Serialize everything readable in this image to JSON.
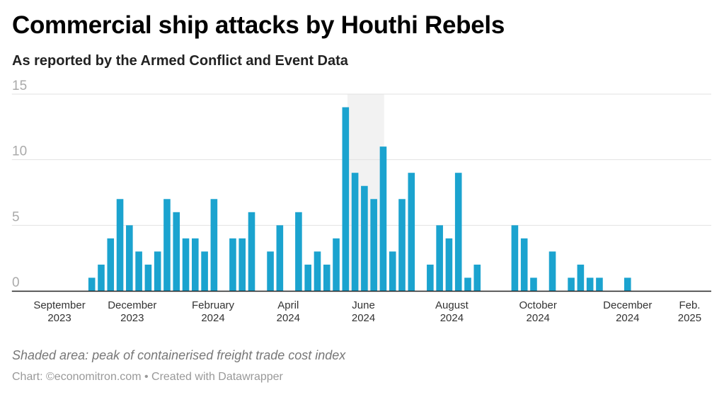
{
  "chart_data": {
    "type": "bar",
    "title": "Commercial ship attacks by Houthi Rebels",
    "subtitle": "As reported by the Armed Conflict and Event Data",
    "xlabel": "",
    "ylabel": "",
    "ylim": [
      0,
      15
    ],
    "yticks": [
      0,
      5,
      10,
      15
    ],
    "grid": true,
    "x_unit": "week index",
    "xlim": [
      0,
      74.4
    ],
    "values": [
      0,
      0,
      0,
      0,
      0,
      0,
      0,
      0,
      1,
      2,
      4,
      7,
      5,
      3,
      2,
      3,
      7,
      6,
      4,
      4,
      3,
      7,
      0,
      4,
      4,
      6,
      0,
      3,
      5,
      0,
      6,
      2,
      3,
      2,
      4,
      14,
      9,
      8,
      7,
      11,
      3,
      7,
      9,
      0,
      2,
      5,
      4,
      9,
      1,
      2,
      0,
      0,
      0,
      5,
      4,
      1,
      0,
      3,
      0,
      1,
      2,
      1,
      1,
      0,
      0,
      1,
      0,
      0,
      0,
      0,
      0,
      0,
      0,
      0
    ],
    "xticks": [
      {
        "pos": 5.06,
        "line1": "September",
        "line2": "2023"
      },
      {
        "pos": 12.8,
        "line1": "December",
        "line2": "2023"
      },
      {
        "pos": 21.4,
        "line1": "February",
        "line2": "2024"
      },
      {
        "pos": 29.4,
        "line1": "April",
        "line2": "2024"
      },
      {
        "pos": 37.4,
        "line1": "June",
        "line2": "2024"
      },
      {
        "pos": 46.8,
        "line1": "August",
        "line2": "2024"
      },
      {
        "pos": 55.97,
        "line1": "October",
        "line2": "2024"
      },
      {
        "pos": 65.5,
        "line1": "December",
        "line2": "2024"
      },
      {
        "pos": 72.1,
        "line1": "Feb.",
        "line2": "2025"
      }
    ],
    "shaded_range": [
      35.7,
      39.6
    ],
    "bar_color": "#1ba3cf",
    "shade_color": "#f2f2f2"
  },
  "note": "Shaded area: peak of containerised freight trade cost index",
  "footer": "Chart: ©economitron.com • Created with Datawrapper"
}
